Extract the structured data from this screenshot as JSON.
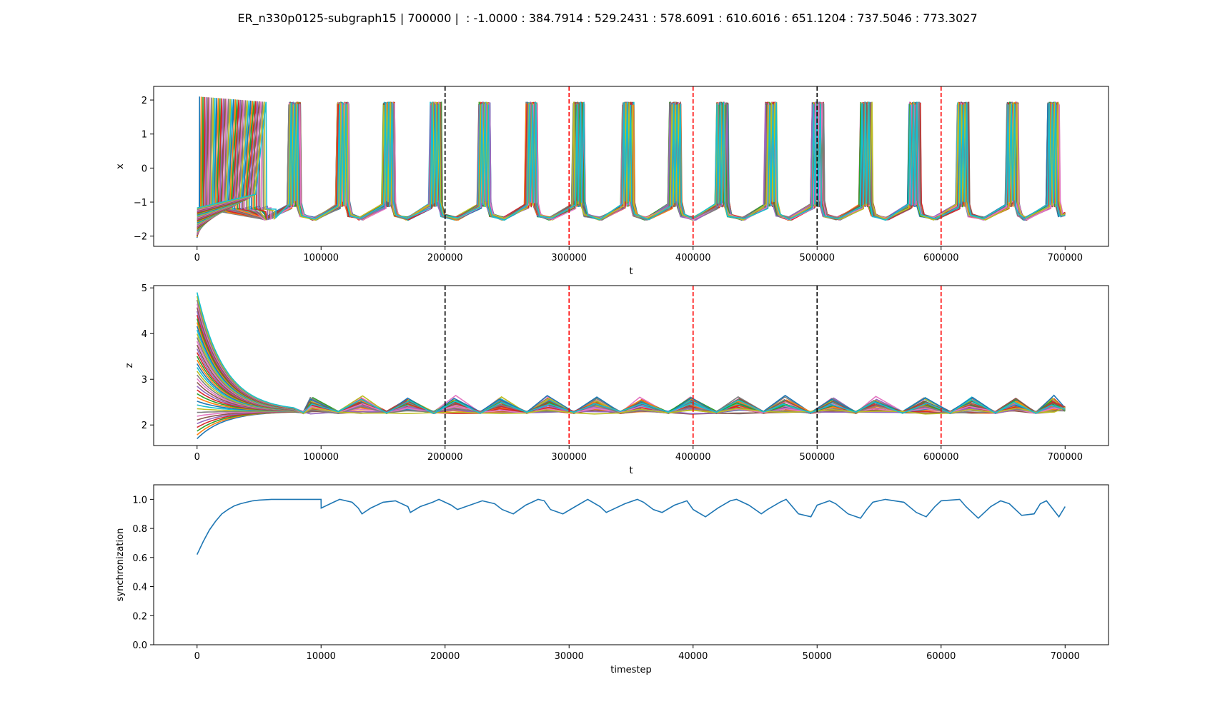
{
  "figure": {
    "title": "ER_n330p0125-subgraph15 | 700000 |  : -1.0000 : 384.7914 : 529.2431 : 578.6091 : 610.6016 : 651.1204 : 737.5046 : 773.3027"
  },
  "colors": {
    "palette": [
      "#1f77b4",
      "#ff7f0e",
      "#2ca02c",
      "#d62728",
      "#9467bd",
      "#8c564b",
      "#e377c2",
      "#7f7f7f",
      "#bcbd22",
      "#17becf"
    ],
    "black_marker": "#000000",
    "red_marker": "#ff0000"
  },
  "chart_data": [
    {
      "id": "x_panel",
      "type": "line",
      "xlabel": "t",
      "ylabel": "x",
      "xlim": [
        -35000,
        735000
      ],
      "ylim": [
        -2.3,
        2.4
      ],
      "xticks": [
        0,
        100000,
        200000,
        300000,
        400000,
        500000,
        600000,
        700000
      ],
      "yticks": [
        -2,
        -1,
        0,
        1,
        2
      ],
      "xtick_labels": [
        "0",
        "100000",
        "200000",
        "300000",
        "400000",
        "500000",
        "600000",
        "700000"
      ],
      "ytick_labels": [
        "−2",
        "−1",
        "0",
        "1",
        "2"
      ],
      "grid": false,
      "series_count": 40,
      "initial_bursts_end": 57000,
      "burst_starts": [
        76000,
        115000,
        152000,
        190000,
        229000,
        267000,
        305000,
        345000,
        383000,
        421000,
        460000,
        498000,
        537000,
        576000,
        615000,
        655000,
        688000
      ],
      "burst_width": 8000,
      "spike_max": 1.95,
      "baseline": -1.3,
      "x_end": 700000,
      "vlines": [
        {
          "x": 200000,
          "color": "black"
        },
        {
          "x": 300000,
          "color": "red"
        },
        {
          "x": 400000,
          "color": "red"
        },
        {
          "x": 500000,
          "color": "black"
        },
        {
          "x": 600000,
          "color": "red"
        }
      ]
    },
    {
      "id": "z_panel",
      "type": "line",
      "xlabel": "t",
      "ylabel": "z",
      "xlim": [
        -35000,
        735000
      ],
      "ylim": [
        1.55,
        5.05
      ],
      "xticks": [
        0,
        100000,
        200000,
        300000,
        400000,
        500000,
        600000,
        700000
      ],
      "yticks": [
        2,
        3,
        4,
        5
      ],
      "xtick_labels": [
        "0",
        "100000",
        "200000",
        "300000",
        "400000",
        "500000",
        "600000",
        "700000"
      ],
      "ytick_labels": [
        "2",
        "3",
        "4",
        "5"
      ],
      "grid": false,
      "series_count": 40,
      "initial_range": [
        1.7,
        4.9
      ],
      "settle_value": 2.3,
      "oscillation_peaks": [
        92000,
        132000,
        170000,
        208000,
        245000,
        283000,
        321000,
        358000,
        398000,
        436000,
        474000,
        512000,
        547000,
        587000,
        624000,
        660000,
        690000
      ],
      "peak_range": [
        2.38,
        2.66
      ],
      "trough": 2.25,
      "x_end": 700000,
      "vlines": [
        {
          "x": 200000,
          "color": "black"
        },
        {
          "x": 300000,
          "color": "red"
        },
        {
          "x": 400000,
          "color": "red"
        },
        {
          "x": 500000,
          "color": "black"
        },
        {
          "x": 600000,
          "color": "red"
        }
      ]
    },
    {
      "id": "sync_panel",
      "type": "line",
      "xlabel": "timestep",
      "ylabel": "synchronization",
      "xlim": [
        -3500,
        73500
      ],
      "ylim": [
        0.0,
        1.1
      ],
      "xticks": [
        0,
        10000,
        20000,
        30000,
        40000,
        50000,
        60000,
        70000
      ],
      "yticks": [
        0.0,
        0.2,
        0.4,
        0.6,
        0.8,
        1.0
      ],
      "xtick_labels": [
        "0",
        "10000",
        "20000",
        "30000",
        "40000",
        "50000",
        "60000",
        "70000"
      ],
      "ytick_labels": [
        "0.0",
        "0.2",
        "0.4",
        "0.6",
        "0.8",
        "1.0"
      ],
      "grid": false,
      "series": [
        {
          "color": "#1f77b4",
          "x": [
            0,
            500,
            1000,
            1500,
            2000,
            2500,
            3000,
            3500,
            4000,
            4500,
            5000,
            6000,
            8000,
            10000,
            10010,
            11000,
            11500,
            12500,
            13000,
            13300,
            14000,
            15000,
            16000,
            17000,
            17200,
            18000,
            19000,
            19500,
            20500,
            21000,
            22000,
            23000,
            24000,
            24600,
            25500,
            26500,
            27500,
            28000,
            28500,
            29500,
            30500,
            31500,
            32500,
            33000,
            34500,
            35500,
            36000,
            36800,
            37500,
            38500,
            39500,
            40000,
            41000,
            42000,
            43000,
            43500,
            44500,
            45500,
            46000,
            47000,
            47500,
            48500,
            49500,
            50000,
            51000,
            51500,
            52500,
            53500,
            54000,
            54500,
            55500,
            57000,
            58000,
            58800,
            59500,
            60000,
            61500,
            62000,
            63000,
            64000,
            64800,
            65500,
            66500,
            67500,
            68000,
            68500,
            69500,
            70000
          ],
          "y": [
            0.62,
            0.71,
            0.79,
            0.85,
            0.9,
            0.93,
            0.955,
            0.97,
            0.98,
            0.99,
            0.995,
            1.0,
            1.0,
            1.0,
            0.94,
            0.98,
            1.0,
            0.98,
            0.94,
            0.9,
            0.94,
            0.98,
            0.99,
            0.95,
            0.91,
            0.95,
            0.98,
            1.0,
            0.96,
            0.93,
            0.96,
            0.99,
            0.97,
            0.93,
            0.9,
            0.96,
            1.0,
            0.99,
            0.93,
            0.9,
            0.95,
            1.0,
            0.95,
            0.91,
            0.97,
            1.0,
            0.98,
            0.93,
            0.91,
            0.96,
            0.99,
            0.93,
            0.88,
            0.94,
            0.99,
            1.0,
            0.96,
            0.9,
            0.93,
            0.98,
            1.0,
            0.9,
            0.88,
            0.96,
            0.99,
            0.97,
            0.9,
            0.87,
            0.93,
            0.98,
            1.0,
            0.98,
            0.91,
            0.88,
            0.95,
            0.99,
            1.0,
            0.95,
            0.87,
            0.95,
            0.99,
            0.97,
            0.89,
            0.9,
            0.97,
            0.99,
            0.88,
            0.95
          ]
        }
      ],
      "vlines": []
    }
  ]
}
